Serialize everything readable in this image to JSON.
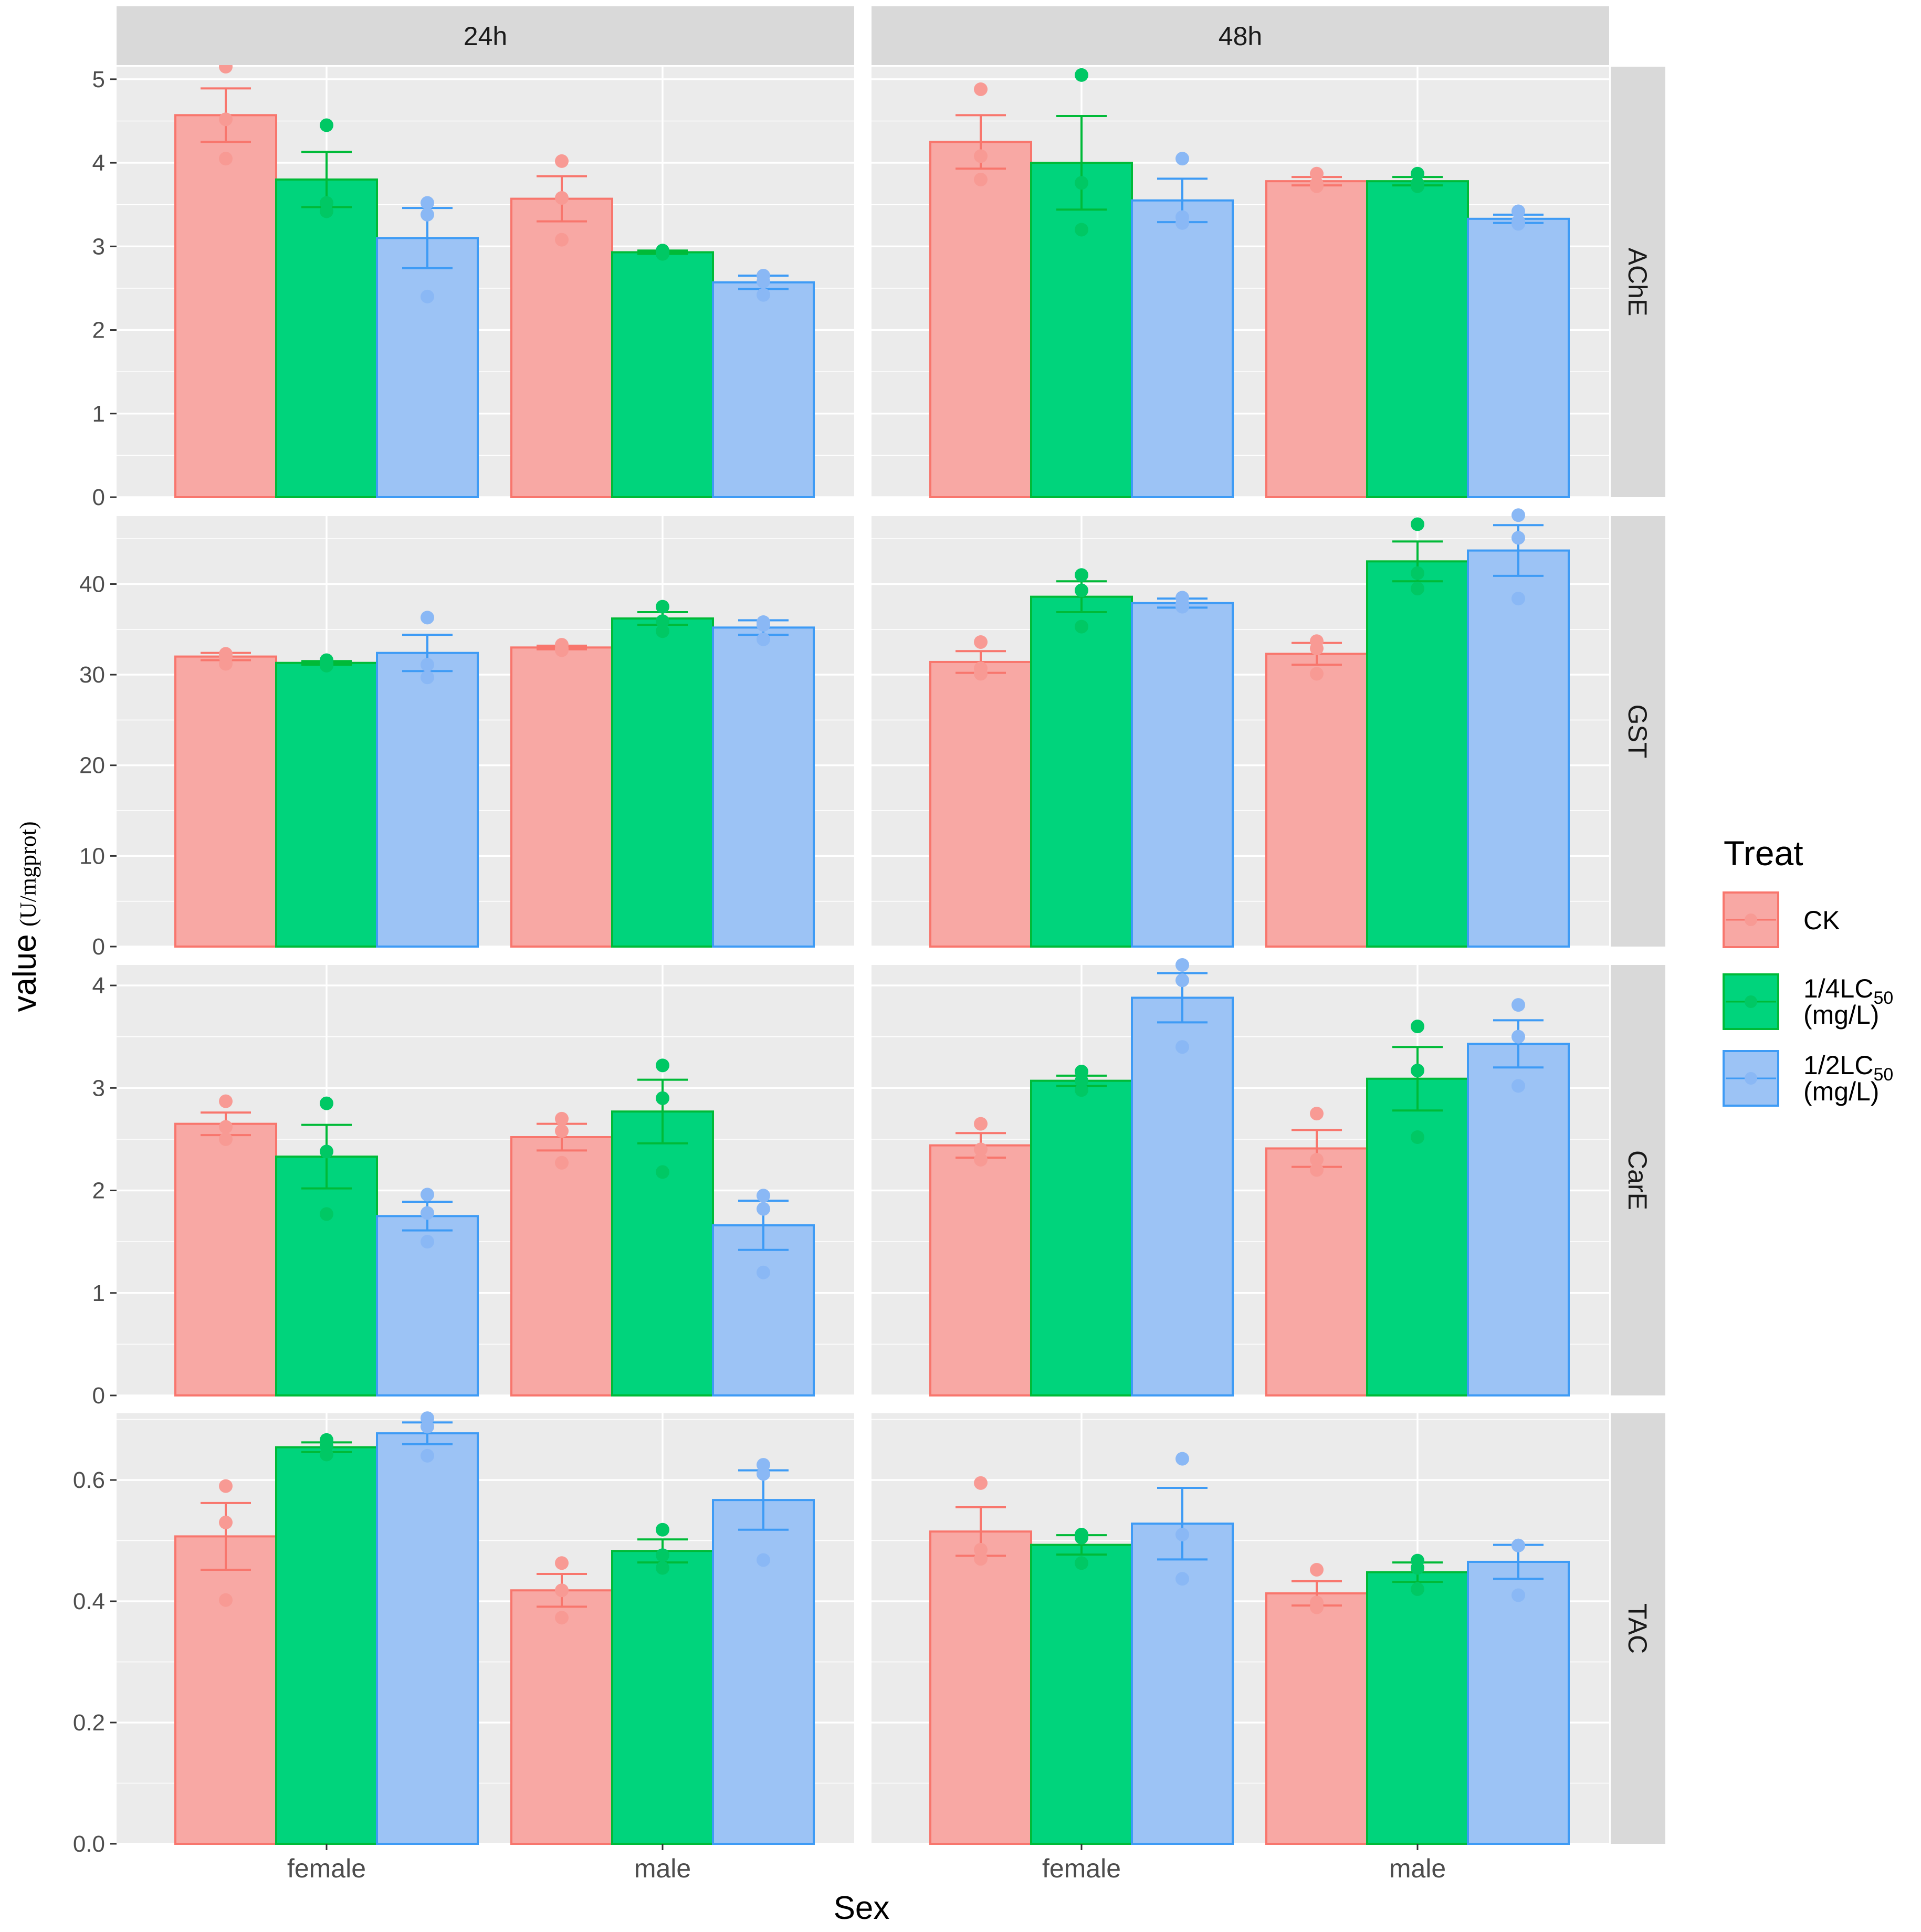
{
  "chart_data": {
    "type": "bar",
    "facet_columns": [
      "24h",
      "48h"
    ],
    "facet_rows": [
      "AChE",
      "GST",
      "CarE",
      "TAC"
    ],
    "categories": [
      "female",
      "male"
    ],
    "xlabel": "Sex",
    "ylabel_main": "value",
    "ylabel_unit": "(U/mgprot)",
    "legend": {
      "title": "Treat",
      "position": "right",
      "items": [
        {
          "name": "CK",
          "label": "CK",
          "sub": "",
          "label2": ""
        },
        {
          "name": "1/4LC50",
          "label": "1/4LC",
          "sub": "50",
          "label2": "(mg/L)"
        },
        {
          "name": "1/2LC50",
          "label": "1/2LC",
          "sub": "50",
          "label2": "(mg/L)"
        }
      ]
    },
    "colors": {
      "CK": {
        "fill": "#F8A8A4",
        "stroke": "#F8766D",
        "point": "#F89A94"
      },
      "1/4LC50": {
        "fill": "#00D47C",
        "stroke": "#00BA38",
        "point": "#00C864"
      },
      "1/2LC50": {
        "fill": "#9CC3F5",
        "stroke": "#3E9BF5",
        "point": "#8AB8F5"
      },
      "panel_bg": "#EBEBEB",
      "strip_bg": "#D9D9D9",
      "grid": "#FFFFFF"
    },
    "rows": [
      {
        "name": "AChE",
        "ylim": [
          0,
          5.15
        ],
        "ticks": [
          0,
          1,
          2,
          3,
          4,
          5
        ],
        "tick_labels": [
          "0",
          "1",
          "2",
          "3",
          "4",
          "5"
        ],
        "panels": [
          {
            "time": "24h",
            "groups": [
              {
                "sex": "female",
                "series": [
                  {
                    "treat": "CK",
                    "mean": 4.57,
                    "se": 0.32,
                    "points": [
                      5.15,
                      4.52,
                      4.05
                    ]
                  },
                  {
                    "treat": "1/4LC50",
                    "mean": 3.8,
                    "se": 0.33,
                    "points": [
                      4.45,
                      3.52,
                      3.42
                    ]
                  },
                  {
                    "treat": "1/2LC50",
                    "mean": 3.1,
                    "se": 0.36,
                    "points": [
                      3.52,
                      3.38,
                      2.4
                    ]
                  }
                ]
              },
              {
                "sex": "male",
                "series": [
                  {
                    "treat": "CK",
                    "mean": 3.57,
                    "se": 0.27,
                    "points": [
                      4.02,
                      3.58,
                      3.08
                    ]
                  },
                  {
                    "treat": "1/4LC50",
                    "mean": 2.93,
                    "se": 0.02,
                    "points": [
                      2.95,
                      2.93,
                      2.91
                    ]
                  },
                  {
                    "treat": "1/2LC50",
                    "mean": 2.57,
                    "se": 0.08,
                    "points": [
                      2.65,
                      2.58,
                      2.42
                    ]
                  }
                ]
              }
            ]
          },
          {
            "time": "48h",
            "groups": [
              {
                "sex": "female",
                "series": [
                  {
                    "treat": "CK",
                    "mean": 4.25,
                    "se": 0.32,
                    "points": [
                      4.88,
                      4.08,
                      3.8
                    ]
                  },
                  {
                    "treat": "1/4LC50",
                    "mean": 4.0,
                    "se": 0.56,
                    "points": [
                      5.05,
                      3.76,
                      3.2
                    ]
                  },
                  {
                    "treat": "1/2LC50",
                    "mean": 3.55,
                    "se": 0.26,
                    "points": [
                      4.05,
                      3.35,
                      3.28
                    ]
                  }
                ]
              },
              {
                "sex": "male",
                "series": [
                  {
                    "treat": "CK",
                    "mean": 3.78,
                    "se": 0.05,
                    "points": [
                      3.87,
                      3.75,
                      3.72
                    ]
                  },
                  {
                    "treat": "1/4LC50",
                    "mean": 3.78,
                    "se": 0.05,
                    "points": [
                      3.87,
                      3.75,
                      3.72
                    ]
                  },
                  {
                    "treat": "1/2LC50",
                    "mean": 3.33,
                    "se": 0.05,
                    "points": [
                      3.42,
                      3.3,
                      3.27
                    ]
                  }
                ]
              }
            ]
          }
        ]
      },
      {
        "name": "GST",
        "ylim": [
          0,
          47.5
        ],
        "ticks": [
          0,
          10,
          20,
          30,
          40
        ],
        "tick_labels": [
          "0",
          "10",
          "20",
          "30",
          "40"
        ],
        "panels": [
          {
            "time": "24h",
            "groups": [
              {
                "sex": "female",
                "series": [
                  {
                    "treat": "CK",
                    "mean": 32.0,
                    "se": 0.4,
                    "points": [
                      32.3,
                      31.9,
                      31.2
                    ]
                  },
                  {
                    "treat": "1/4LC50",
                    "mean": 31.3,
                    "se": 0.2,
                    "points": [
                      31.6,
                      31.2,
                      31.0
                    ]
                  },
                  {
                    "treat": "1/2LC50",
                    "mean": 32.4,
                    "se": 2.0,
                    "points": [
                      36.3,
                      31.1,
                      29.7
                    ]
                  }
                ]
              },
              {
                "sex": "male",
                "series": [
                  {
                    "treat": "CK",
                    "mean": 33.0,
                    "se": 0.2,
                    "points": [
                      33.3,
                      32.9,
                      32.7
                    ]
                  },
                  {
                    "treat": "1/4LC50",
                    "mean": 36.2,
                    "se": 0.7,
                    "points": [
                      37.5,
                      35.9,
                      34.8
                    ]
                  },
                  {
                    "treat": "1/2LC50",
                    "mean": 35.2,
                    "se": 0.8,
                    "points": [
                      35.8,
                      35.5,
                      33.9
                    ]
                  }
                ]
              }
            ]
          },
          {
            "time": "48h",
            "groups": [
              {
                "sex": "female",
                "series": [
                  {
                    "treat": "CK",
                    "mean": 31.4,
                    "se": 1.2,
                    "points": [
                      33.6,
                      30.7,
                      30.1
                    ]
                  },
                  {
                    "treat": "1/4LC50",
                    "mean": 38.6,
                    "se": 1.7,
                    "points": [
                      41.0,
                      39.3,
                      35.3
                    ]
                  },
                  {
                    "treat": "1/2LC50",
                    "mean": 37.9,
                    "se": 0.5,
                    "points": [
                      38.5,
                      37.8,
                      37.5
                    ]
                  }
                ]
              },
              {
                "sex": "male",
                "series": [
                  {
                    "treat": "CK",
                    "mean": 32.3,
                    "se": 1.2,
                    "points": [
                      33.7,
                      32.9,
                      30.1
                    ]
                  },
                  {
                    "treat": "1/4LC50",
                    "mean": 42.5,
                    "se": 2.2,
                    "points": [
                      46.6,
                      41.2,
                      39.5
                    ]
                  },
                  {
                    "treat": "1/2LC50",
                    "mean": 43.7,
                    "se": 2.8,
                    "points": [
                      47.6,
                      45.1,
                      38.4
                    ]
                  }
                ]
              }
            ]
          }
        ]
      },
      {
        "name": "CarE",
        "ylim": [
          0,
          4.2
        ],
        "ticks": [
          0,
          1,
          2,
          3,
          4
        ],
        "tick_labels": [
          "0",
          "1",
          "2",
          "3",
          "4"
        ],
        "panels": [
          {
            "time": "24h",
            "groups": [
              {
                "sex": "female",
                "series": [
                  {
                    "treat": "CK",
                    "mean": 2.65,
                    "se": 0.11,
                    "points": [
                      2.87,
                      2.62,
                      2.5
                    ]
                  },
                  {
                    "treat": "1/4LC50",
                    "mean": 2.33,
                    "se": 0.31,
                    "points": [
                      2.85,
                      2.38,
                      1.77
                    ]
                  },
                  {
                    "treat": "1/2LC50",
                    "mean": 1.75,
                    "se": 0.14,
                    "points": [
                      1.96,
                      1.78,
                      1.5
                    ]
                  }
                ]
              },
              {
                "sex": "male",
                "series": [
                  {
                    "treat": "CK",
                    "mean": 2.52,
                    "se": 0.13,
                    "points": [
                      2.7,
                      2.58,
                      2.27
                    ]
                  },
                  {
                    "treat": "1/4LC50",
                    "mean": 2.77,
                    "se": 0.31,
                    "points": [
                      3.22,
                      2.9,
                      2.18
                    ]
                  },
                  {
                    "treat": "1/2LC50",
                    "mean": 1.66,
                    "se": 0.24,
                    "points": [
                      1.95,
                      1.82,
                      1.2
                    ]
                  }
                ]
              }
            ]
          },
          {
            "time": "48h",
            "groups": [
              {
                "sex": "female",
                "series": [
                  {
                    "treat": "CK",
                    "mean": 2.44,
                    "se": 0.12,
                    "points": [
                      2.65,
                      2.4,
                      2.3
                    ]
                  },
                  {
                    "treat": "1/4LC50",
                    "mean": 3.07,
                    "se": 0.05,
                    "points": [
                      3.16,
                      3.07,
                      2.98
                    ]
                  },
                  {
                    "treat": "1/2LC50",
                    "mean": 3.88,
                    "se": 0.24,
                    "points": [
                      4.2,
                      4.05,
                      3.4
                    ]
                  }
                ]
              },
              {
                "sex": "male",
                "series": [
                  {
                    "treat": "CK",
                    "mean": 2.41,
                    "se": 0.18,
                    "points": [
                      2.75,
                      2.3,
                      2.2
                    ]
                  },
                  {
                    "treat": "1/4LC50",
                    "mean": 3.09,
                    "se": 0.31,
                    "points": [
                      3.6,
                      3.17,
                      2.52
                    ]
                  },
                  {
                    "treat": "1/2LC50",
                    "mean": 3.43,
                    "se": 0.23,
                    "points": [
                      3.81,
                      3.5,
                      3.02
                    ]
                  }
                ]
              }
            ]
          }
        ]
      },
      {
        "name": "TAC",
        "ylim": [
          0,
          0.71
        ],
        "ticks": [
          0.0,
          0.2,
          0.4,
          0.6
        ],
        "tick_labels": [
          "0.0",
          "0.2",
          "0.4",
          "0.6"
        ],
        "panels": [
          {
            "time": "24h",
            "groups": [
              {
                "sex": "female",
                "series": [
                  {
                    "treat": "CK",
                    "mean": 0.507,
                    "se": 0.055,
                    "points": [
                      0.59,
                      0.53,
                      0.402
                    ]
                  },
                  {
                    "treat": "1/4LC50",
                    "mean": 0.654,
                    "se": 0.008,
                    "points": [
                      0.666,
                      0.656,
                      0.642
                    ]
                  },
                  {
                    "treat": "1/2LC50",
                    "mean": 0.677,
                    "se": 0.018,
                    "points": [
                      0.702,
                      0.688,
                      0.64
                    ]
                  }
                ]
              },
              {
                "sex": "male",
                "series": [
                  {
                    "treat": "CK",
                    "mean": 0.418,
                    "se": 0.027,
                    "points": [
                      0.463,
                      0.418,
                      0.373
                    ]
                  },
                  {
                    "treat": "1/4LC50",
                    "mean": 0.483,
                    "se": 0.019,
                    "points": [
                      0.518,
                      0.476,
                      0.455
                    ]
                  },
                  {
                    "treat": "1/2LC50",
                    "mean": 0.567,
                    "se": 0.049,
                    "points": [
                      0.625,
                      0.61,
                      0.468
                    ]
                  }
                ]
              }
            ]
          },
          {
            "time": "48h",
            "groups": [
              {
                "sex": "female",
                "series": [
                  {
                    "treat": "CK",
                    "mean": 0.515,
                    "se": 0.04,
                    "points": [
                      0.595,
                      0.485,
                      0.47
                    ]
                  },
                  {
                    "treat": "1/4LC50",
                    "mean": 0.493,
                    "se": 0.016,
                    "points": [
                      0.51,
                      0.505,
                      0.463
                    ]
                  },
                  {
                    "treat": "1/2LC50",
                    "mean": 0.528,
                    "se": 0.059,
                    "points": [
                      0.635,
                      0.51,
                      0.437
                    ]
                  }
                ]
              },
              {
                "sex": "male",
                "series": [
                  {
                    "treat": "CK",
                    "mean": 0.413,
                    "se": 0.02,
                    "points": [
                      0.452,
                      0.398,
                      0.39
                    ]
                  },
                  {
                    "treat": "1/4LC50",
                    "mean": 0.448,
                    "se": 0.016,
                    "points": [
                      0.467,
                      0.455,
                      0.42
                    ]
                  },
                  {
                    "treat": "1/2LC50",
                    "mean": 0.465,
                    "se": 0.028,
                    "points": [
                      0.492,
                      0.492,
                      0.41
                    ]
                  }
                ]
              }
            ]
          }
        ]
      }
    ]
  }
}
